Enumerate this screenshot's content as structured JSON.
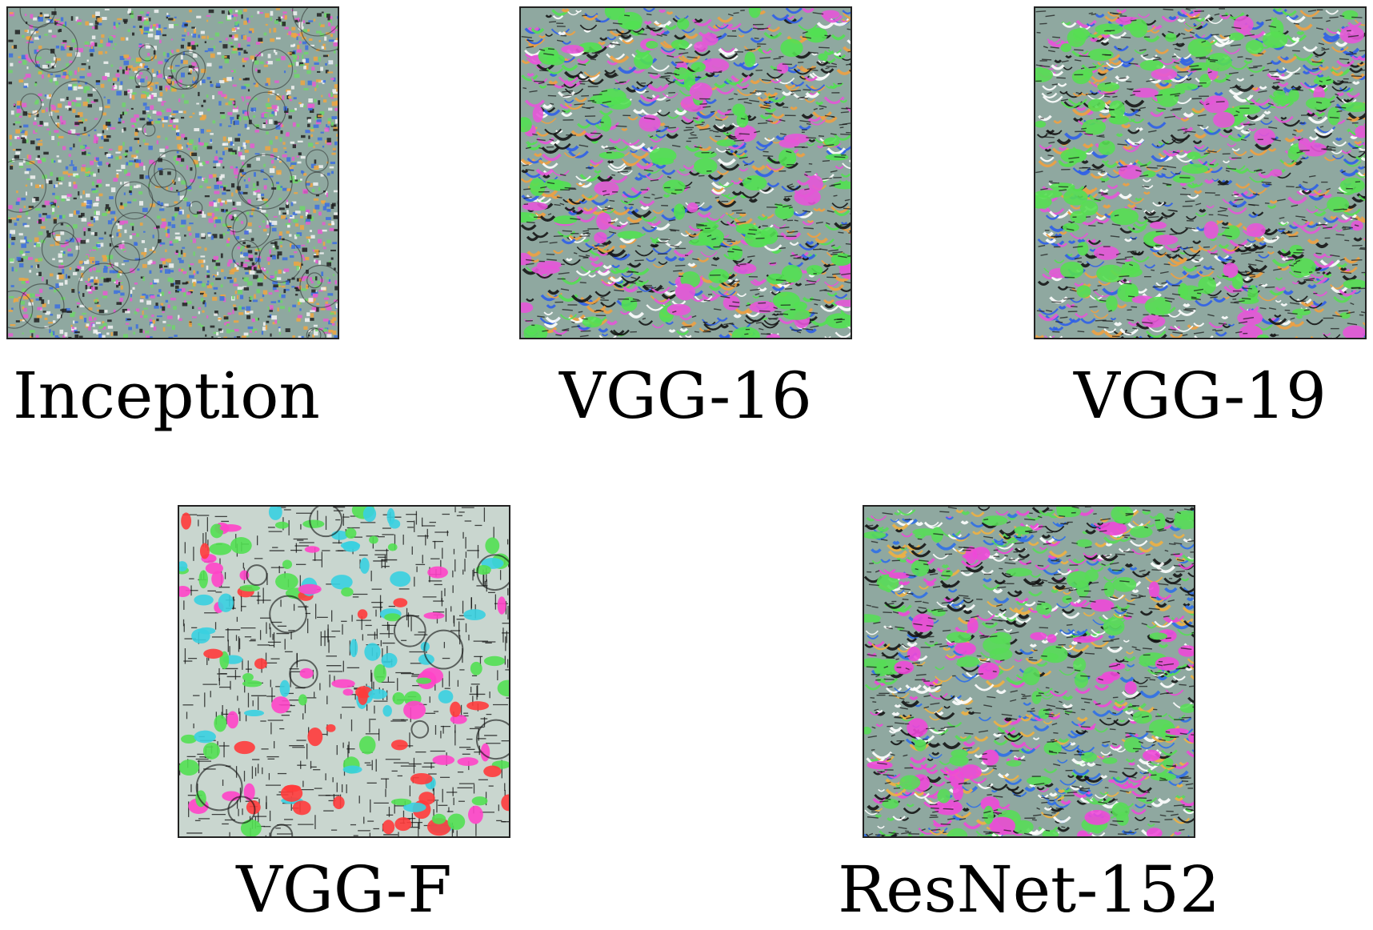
{
  "panels": [
    {
      "id": "inception",
      "caption": "Inception",
      "palette": [
        "#6fd66a",
        "#e85bd1",
        "#3b6fe0",
        "#f0a640",
        "#f4f4f4",
        "#202020"
      ],
      "style": "fine-noise"
    },
    {
      "id": "vgg16",
      "caption": "VGG-16",
      "palette": [
        "#52e052",
        "#e655d8",
        "#2f5fe8",
        "#f0a040",
        "#ffffff",
        "#151515"
      ],
      "style": "scales"
    },
    {
      "id": "vgg19",
      "caption": "VGG-19",
      "palette": [
        "#56de52",
        "#e655d8",
        "#2f5fe8",
        "#f0a040",
        "#ffffff",
        "#151515"
      ],
      "style": "scales"
    },
    {
      "id": "vggf",
      "caption": "VGG-F",
      "palette": [
        "#52e052",
        "#ff44c8",
        "#ff3b3b",
        "#39d0e0",
        "#ffffff",
        "#101010"
      ],
      "style": "grid"
    },
    {
      "id": "resnet",
      "caption": "ResNet-152",
      "palette": [
        "#58dc58",
        "#ee48d8",
        "#2f6fe8",
        "#f0b040",
        "#ffffff",
        "#141414"
      ],
      "style": "scales"
    }
  ]
}
